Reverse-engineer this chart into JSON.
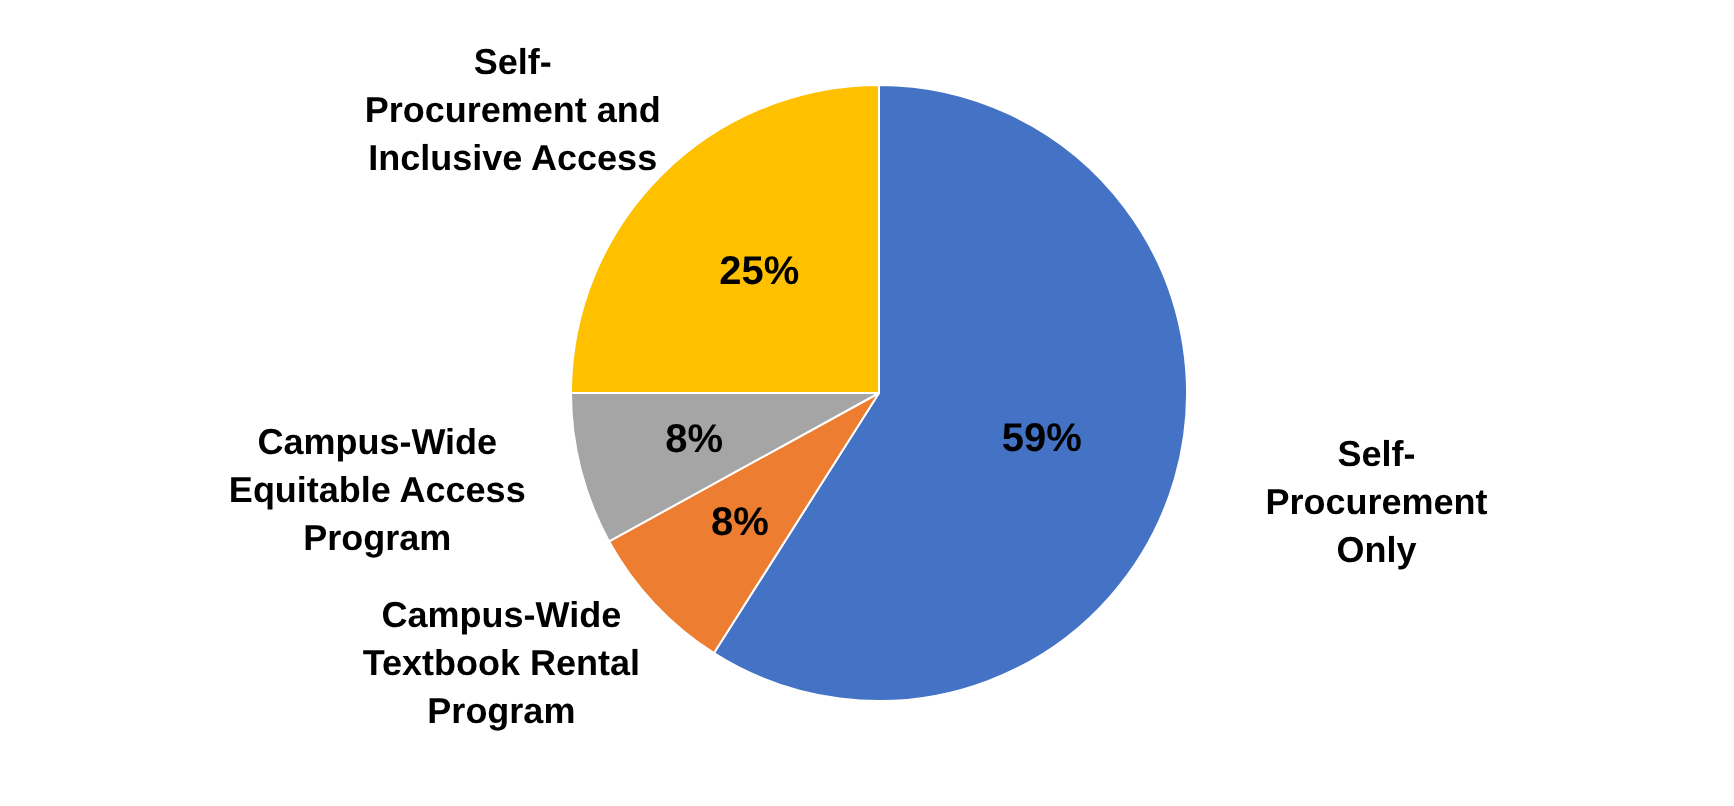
{
  "chart_data": {
    "type": "pie",
    "categories": [
      "Self-Procurement Only",
      "Campus-Wide Textbook Rental Program",
      "Campus-Wide Equitable Access Program",
      "Self-Procurement and Inclusive Access"
    ],
    "values": [
      59,
      8,
      8,
      25
    ],
    "colors": [
      "#4472c4",
      "#ed7d31",
      "#a5a5a5",
      "#ffc000"
    ],
    "value_labels": [
      "59%",
      "8%",
      "8%",
      "25%"
    ],
    "legend": false
  }
}
